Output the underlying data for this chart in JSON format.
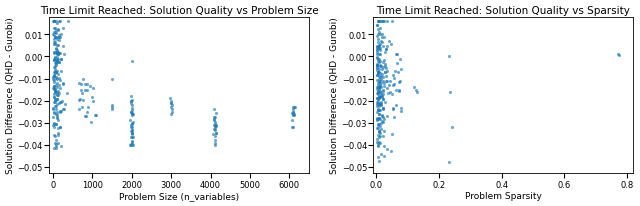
{
  "plot1": {
    "title": "Time Limit Reached: Solution Quality vs Problem Size",
    "xlabel": "Problem Size (n_variables)",
    "ylabel": "Solution Difference (QHD - Gurobi)",
    "xlim": [
      -100,
      6500
    ],
    "ylim": [
      -0.053,
      0.018
    ],
    "xticks": [
      0,
      1000,
      2000,
      3000,
      4000,
      5000,
      6000
    ]
  },
  "plot2": {
    "title": "Time Limit Reached: Solution Quality vs Sparsity",
    "xlabel": "Problem Sparsity",
    "ylabel": "Solution Difference (QHD - Gurobi)",
    "xlim": [
      -0.01,
      0.82
    ],
    "ylim": [
      -0.053,
      0.018
    ],
    "xticks": [
      0.0,
      0.2,
      0.4,
      0.6,
      0.8
    ]
  },
  "dot_color": "#1f7ab8",
  "dot_size": 5,
  "dot_alpha": 0.65,
  "background_color": "#ffffff",
  "title_fontsize": 7.5,
  "label_fontsize": 6.5,
  "tick_fontsize": 6.0
}
